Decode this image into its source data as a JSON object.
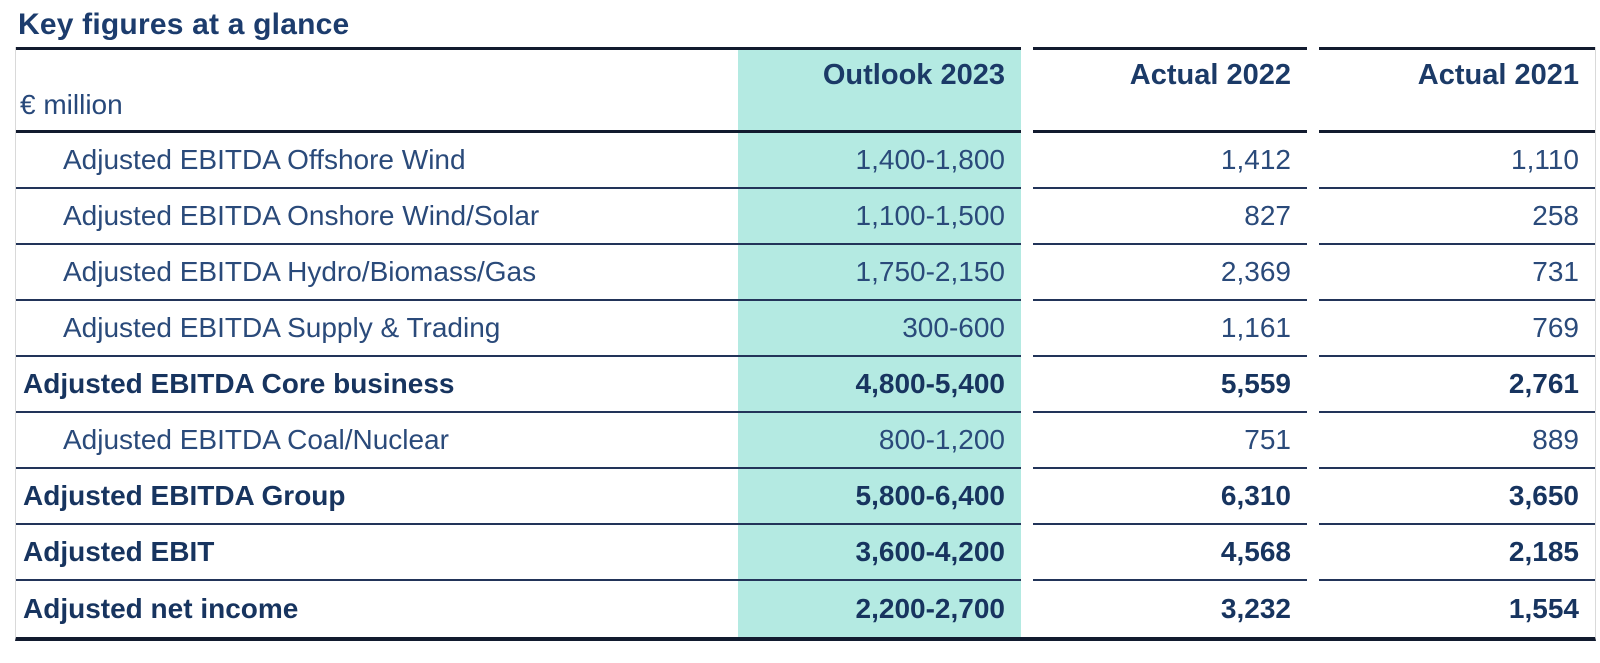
{
  "title": "Key figures at a glance",
  "table": {
    "unit_label": "€ million",
    "columns": {
      "outlook": "Outlook 2023",
      "actual2022": "Actual 2022",
      "actual2021": "Actual 2021"
    },
    "rows": [
      {
        "label": "Adjusted EBITDA Offshore Wind",
        "outlook": "1,400-1,800",
        "actual2022": "1,412",
        "actual2021": "1,110"
      },
      {
        "label": "Adjusted EBITDA Onshore Wind/Solar",
        "outlook": "1,100-1,500",
        "actual2022": "827",
        "actual2021": "258"
      },
      {
        "label": "Adjusted EBITDA Hydro/Biomass/Gas",
        "outlook": "1,750-2,150",
        "actual2022": "2,369",
        "actual2021": "731"
      },
      {
        "label": "Adjusted EBITDA Supply & Trading",
        "outlook": "300-600",
        "actual2022": "1,161",
        "actual2021": "769"
      },
      {
        "label": "Adjusted EBITDA Core business",
        "outlook": "4,800-5,400",
        "actual2022": "5,559",
        "actual2021": "2,761"
      },
      {
        "label": "Adjusted EBITDA Coal/Nuclear",
        "outlook": "800-1,200",
        "actual2022": "751",
        "actual2021": "889"
      },
      {
        "label": "Adjusted EBITDA Group",
        "outlook": "5,800-6,400",
        "actual2022": "6,310",
        "actual2021": "3,650"
      },
      {
        "label": "Adjusted EBIT",
        "outlook": "3,600-4,200",
        "actual2022": "4,568",
        "actual2021": "2,185"
      },
      {
        "label": "Adjusted net income",
        "outlook": "2,200-2,700",
        "actual2022": "3,232",
        "actual2021": "1,554"
      }
    ]
  },
  "colors": {
    "accent_teal": "#b4eae2",
    "text_navy": "#1c3c6d",
    "line_dark": "#121b2f",
    "line_row": "#223459"
  }
}
